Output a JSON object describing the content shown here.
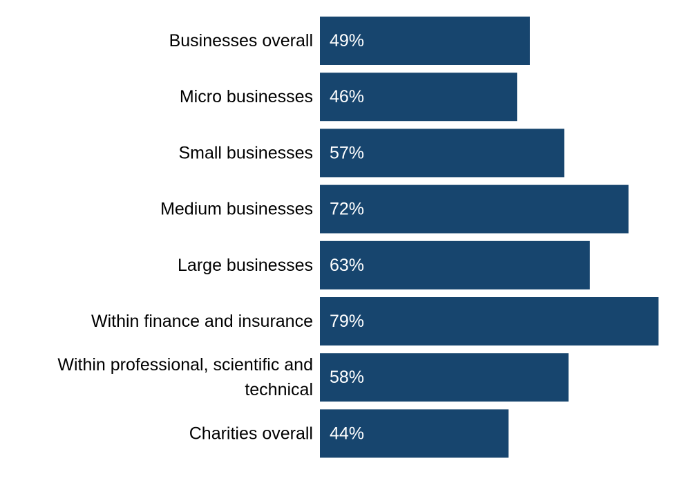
{
  "chart_data": {
    "type": "bar",
    "orientation": "horizontal",
    "title": "",
    "xlabel": "",
    "ylabel": "",
    "categories": [
      "Businesses overall",
      "Micro businesses",
      "Small businesses",
      "Medium businesses",
      "Large businesses",
      "Within finance and insurance",
      "Within professional, scientific and technical",
      "Charities overall"
    ],
    "values": [
      49,
      46,
      57,
      72,
      63,
      79,
      58,
      44
    ],
    "value_labels": [
      "49%",
      "46%",
      "57%",
      "72%",
      "63%",
      "79%",
      "58%",
      "44%"
    ],
    "xlim": [
      0,
      79
    ],
    "grid": false,
    "legend": "none",
    "bar_color": "#17456e",
    "label_color": "#000000",
    "value_label_color": "#ffffff"
  }
}
